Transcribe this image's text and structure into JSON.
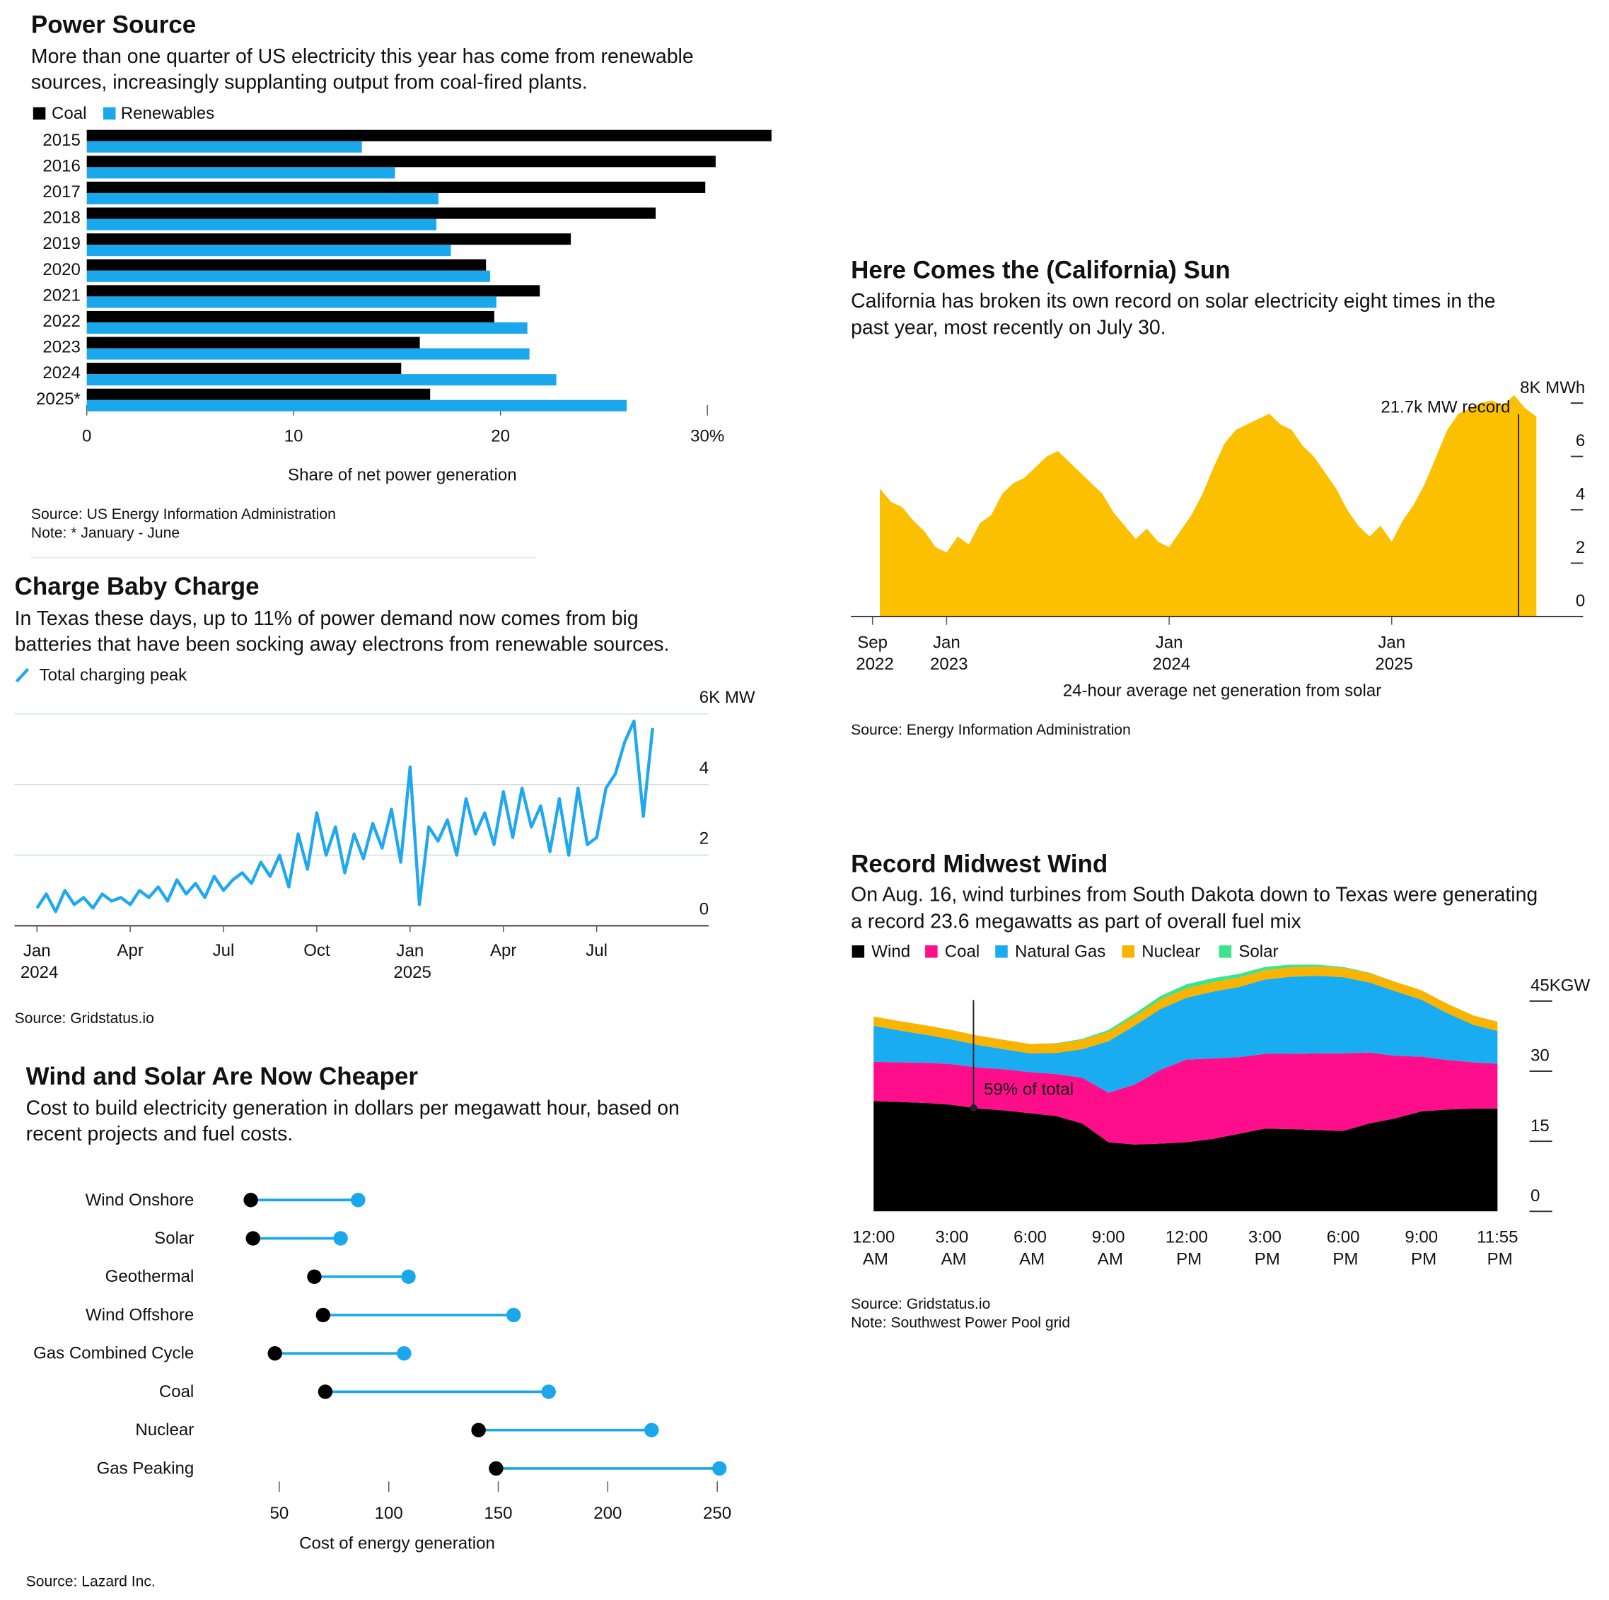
{
  "chart_data": [
    {
      "type": "bar",
      "orientation": "horizontal",
      "title": "Power Source",
      "subtitle": [
        "More than one quarter of US electricity this year has come from renewable",
        "sources, increasingly supplanting output from coal-fired plants."
      ],
      "categories": [
        "2015",
        "2016",
        "2017",
        "2018",
        "2019",
        "2020",
        "2021",
        "2022",
        "2023",
        "2024",
        "2025*"
      ],
      "series": [
        {
          "name": "Coal",
          "color": "#000000",
          "values": [
            33.1,
            30.4,
            29.9,
            27.5,
            23.4,
            19.3,
            21.9,
            19.7,
            16.1,
            15.2,
            16.6
          ]
        },
        {
          "name": "Renewables",
          "color": "#1aa7ec",
          "values": [
            13.3,
            14.9,
            17.0,
            16.9,
            17.6,
            19.5,
            19.8,
            21.3,
            21.4,
            22.7,
            26.1
          ]
        }
      ],
      "xlim": [
        0,
        33.3
      ],
      "xticks": [
        0,
        10,
        20,
        {
          "value": 30,
          "label": "30%"
        }
      ],
      "xlabel": "Share of net power generation",
      "source": "Source: US Energy Information Administration",
      "note": "Note: * January - June"
    },
    {
      "type": "line",
      "title": "Charge Baby Charge",
      "subtitle": [
        "In Texas these days, up to 11% of power demand now comes from big",
        "batteries that have been socking away electrons from renewable sources."
      ],
      "x": [
        2024,
        2024.025,
        2024.05,
        2024.075,
        2024.1,
        2024.125,
        2024.15,
        2024.175,
        2024.2,
        2024.225,
        2024.25,
        2024.275,
        2024.3,
        2024.325,
        2024.35,
        2024.375,
        2024.4,
        2024.425,
        2024.45,
        2024.475,
        2024.5,
        2024.525,
        2024.55,
        2024.575,
        2024.6,
        2024.625,
        2024.65,
        2024.675,
        2024.7,
        2024.725,
        2024.75,
        2024.775,
        2024.8,
        2024.825,
        2024.85,
        2024.875,
        2024.9,
        2024.925,
        2024.95,
        2024.975,
        2025,
        2025.025,
        2025.05,
        2025.075,
        2025.1,
        2025.125,
        2025.15,
        2025.175,
        2025.2,
        2025.225,
        2025.25,
        2025.275,
        2025.3,
        2025.325,
        2025.35,
        2025.375,
        2025.4,
        2025.425,
        2025.45,
        2025.475,
        2025.5,
        2025.525,
        2025.55,
        2025.575,
        2025.6,
        2025.625,
        2025.65
      ],
      "series": [
        {
          "name": "Total charging peak",
          "color": "#1fa8ef",
          "values": [
            0.5,
            0.9,
            0.4,
            1.0,
            0.6,
            0.8,
            0.5,
            0.9,
            0.7,
            0.8,
            0.6,
            1.0,
            0.8,
            1.1,
            0.7,
            1.3,
            0.9,
            1.2,
            0.8,
            1.4,
            1.0,
            1.3,
            1.5,
            1.2,
            1.8,
            1.4,
            2.0,
            1.1,
            2.6,
            1.6,
            3.2,
            2.0,
            2.8,
            1.5,
            2.6,
            1.9,
            2.9,
            2.2,
            3.3,
            1.8,
            4.5,
            0.6,
            2.8,
            2.4,
            3.0,
            2.0,
            3.6,
            2.6,
            3.2,
            2.3,
            3.8,
            2.5,
            3.9,
            2.8,
            3.4,
            2.1,
            3.6,
            2.0,
            3.9,
            2.3,
            2.5,
            3.9,
            4.3,
            5.2,
            5.8,
            3.1,
            5.6
          ]
        }
      ],
      "xlim": [
        2023.94,
        2025.8
      ],
      "xticks": [
        {
          "value": 2024,
          "label": "Jan\n2024"
        },
        {
          "value": 2024.25,
          "label": "Apr"
        },
        {
          "value": 2024.5,
          "label": "Jul"
        },
        {
          "value": 2024.75,
          "label": "Oct"
        },
        {
          "value": 2025,
          "label": "Jan\n2025"
        },
        {
          "value": 2025.25,
          "label": "Apr"
        },
        {
          "value": 2025.5,
          "label": "Jul"
        }
      ],
      "ylim": [
        0,
        6.6
      ],
      "yticks": [
        0,
        2,
        4,
        {
          "value": 6,
          "label": "6K MW"
        }
      ],
      "grid": true,
      "source": "Source: Gridstatus.io"
    },
    {
      "type": "dumbbell",
      "title": "Wind and Solar Are Now Cheaper",
      "subtitle": [
        "Cost to build electricity generation in dollars per megawatt hour, based on",
        "recent projects and fuel costs."
      ],
      "categories": [
        "Wind Onshore",
        "Solar",
        "Geothermal",
        "Wind Offshore",
        "Gas Combined Cycle",
        "Coal",
        "Nuclear",
        "Gas Peaking"
      ],
      "series": [
        {
          "color": "#000000",
          "values": [
            37,
            38,
            66,
            70,
            48,
            71,
            141,
            149
          ]
        },
        {
          "color": "#1aa7ec",
          "values": [
            86,
            78,
            109,
            157,
            107,
            173,
            220,
            251
          ]
        }
      ],
      "xlim": [
        20,
        255
      ],
      "xticks": [
        50,
        100,
        150,
        200,
        250
      ],
      "xlabel": "Cost of energy generation",
      "source": "Source: Lazard Inc."
    },
    {
      "type": "area",
      "title": "Here Comes the (California) Sun",
      "subtitle": [
        "California has broken its own record on solar electricity eight times in the",
        "past year, most recently on July 30."
      ],
      "x": [
        2022.7,
        2022.75,
        2022.8,
        2022.85,
        2022.9,
        2022.95,
        2023,
        2023.05,
        2023.1,
        2023.15,
        2023.2,
        2023.25,
        2023.3,
        2023.35,
        2023.4,
        2023.45,
        2023.5,
        2023.55,
        2023.6,
        2023.65,
        2023.7,
        2023.75,
        2023.8,
        2023.85,
        2023.9,
        2023.95,
        2024,
        2024.05,
        2024.1,
        2024.15,
        2024.2,
        2024.25,
        2024.3,
        2024.35,
        2024.4,
        2024.45,
        2024.5,
        2024.55,
        2024.6,
        2024.65,
        2024.7,
        2024.75,
        2024.8,
        2024.85,
        2024.9,
        2024.95,
        2025,
        2025.05,
        2025.1,
        2025.15,
        2025.2,
        2025.25,
        2025.3,
        2025.35,
        2025.4,
        2025.45,
        2025.5,
        2025.55,
        2025.6,
        2025.65
      ],
      "series": [
        {
          "color": "#fbc000",
          "values": [
            4.8,
            4.3,
            4.1,
            3.6,
            3.2,
            2.6,
            2.4,
            3.0,
            2.7,
            3.5,
            3.8,
            4.6,
            5.0,
            5.2,
            5.6,
            6.0,
            6.2,
            5.8,
            5.4,
            5.0,
            4.6,
            3.9,
            3.4,
            2.9,
            3.3,
            2.8,
            2.6,
            3.2,
            3.8,
            4.6,
            5.6,
            6.5,
            7.0,
            7.2,
            7.4,
            7.6,
            7.2,
            7.0,
            6.4,
            6.0,
            5.4,
            4.8,
            4.0,
            3.4,
            3.0,
            3.4,
            2.8,
            3.6,
            4.2,
            5.0,
            6.0,
            7.0,
            7.6,
            7.8,
            8.0,
            8.1,
            7.9,
            8.3,
            7.8,
            7.5
          ]
        }
      ],
      "xlim": [
        2022.57,
        2025.86
      ],
      "xticks": [
        {
          "value": 2022.667,
          "label": "Sep\n2022"
        },
        {
          "value": 2023,
          "label": "Jan\n2023"
        },
        {
          "value": 2024,
          "label": "Jan\n2024"
        },
        {
          "value": 2025,
          "label": "Jan\n2025"
        }
      ],
      "ylim": [
        0,
        8
      ],
      "yticks": [
        0,
        2,
        4,
        6,
        {
          "value": 8,
          "label": "8K MWh"
        }
      ],
      "annotation": {
        "text": "21.7k MW record",
        "x": 2025.57
      },
      "xlabel": "24-hour average net generation from solar",
      "source": "Source: Energy Information Administration"
    },
    {
      "type": "stacked_area",
      "title": "Record Midwest Wind",
      "subtitle": [
        "On Aug. 16, wind turbines from South Dakota down to Texas were generating",
        "a record 23.6 megawatts as part of overall fuel mix"
      ],
      "x": [
        0,
        1,
        2,
        3,
        4,
        5,
        6,
        7,
        8,
        9,
        10,
        11,
        12,
        13,
        14,
        15,
        16,
        17,
        18,
        19,
        20,
        21,
        22,
        23,
        23.917
      ],
      "series": [
        {
          "name": "Wind",
          "color": "#000000",
          "values": [
            23.6,
            23.4,
            23.2,
            22.8,
            22.0,
            21.6,
            21.0,
            20.4,
            18.8,
            14.8,
            14.3,
            14.5,
            14.8,
            15.5,
            16.6,
            17.7,
            17.6,
            17.4,
            17.2,
            18.8,
            19.9,
            21.4,
            21.8,
            22.0,
            22.0
          ]
        },
        {
          "name": "Coal",
          "color": "#ff0e8c",
          "values": [
            8.4,
            8.5,
            8.6,
            8.7,
            8.8,
            8.8,
            8.8,
            9.0,
            9.8,
            10.6,
            12.8,
            15.8,
            17.7,
            17.2,
            16.4,
            16.0,
            16.1,
            16.4,
            16.6,
            15.2,
            13.4,
            11.7,
            10.6,
            9.9,
            9.6
          ]
        },
        {
          "name": "Natural Gas",
          "color": "#19acf0",
          "values": [
            7.7,
            6.8,
            6.0,
            5.3,
            4.8,
            4.3,
            4.0,
            4.5,
            6.1,
            11.0,
            12.6,
            13.0,
            13.2,
            14.3,
            15.0,
            15.9,
            16.5,
            16.6,
            16.3,
            15.0,
            13.8,
            12.2,
            10.0,
            8.0,
            7.0
          ]
        },
        {
          "name": "Nuclear",
          "color": "#f8b400",
          "values": [
            2.0,
            2.0,
            2.0,
            2.0,
            2.0,
            2.0,
            2.0,
            2.0,
            2.0,
            2.0,
            2.0,
            2.0,
            2.0,
            2.0,
            2.0,
            2.0,
            2.0,
            2.0,
            2.0,
            2.0,
            2.0,
            2.0,
            2.0,
            2.0,
            2.0
          ]
        },
        {
          "name": "Solar",
          "color": "#3ee38c",
          "values": [
            0,
            0,
            0,
            0,
            0,
            0,
            0,
            0.1,
            0.2,
            0.4,
            0.6,
            0.8,
            0.9,
            0.9,
            0.8,
            0.7,
            0.6,
            0.4,
            0.2,
            0.1,
            0,
            0,
            0,
            0,
            0
          ]
        }
      ],
      "xlim": [
        0,
        23.917
      ],
      "xticks": [
        {
          "value": 0,
          "label": "12:00\nAM"
        },
        {
          "value": 3,
          "label": "3:00\nAM"
        },
        {
          "value": 6,
          "label": "6:00\nAM"
        },
        {
          "value": 9,
          "label": "9:00\nAM"
        },
        {
          "value": 12,
          "label": "12:00\nPM"
        },
        {
          "value": 15,
          "label": "3:00\nPM"
        },
        {
          "value": 18,
          "label": "6:00\nPM"
        },
        {
          "value": 21,
          "label": "9:00\nPM"
        },
        {
          "value": 23.917,
          "label": "11:55\nPM"
        }
      ],
      "ylim": [
        0,
        52
      ],
      "yticks": [
        0,
        15,
        30,
        {
          "value": 45,
          "label": "45KGW"
        }
      ],
      "annotation": {
        "text": "59% of total",
        "x": 3.83
      },
      "source": "Source: Gridstatus.io",
      "note": "Note: Southwest Power Pool grid"
    }
  ]
}
